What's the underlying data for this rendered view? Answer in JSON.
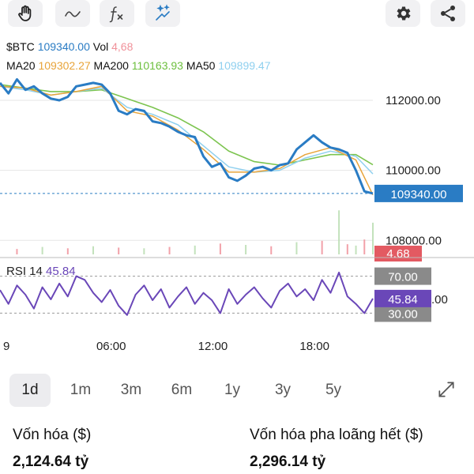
{
  "toolbar": {
    "left": [
      "hand-icon",
      "line-tool-icon",
      "fx-indicator-icon",
      "magic-drawing-icon"
    ],
    "right": [
      "settings-icon",
      "share-icon"
    ]
  },
  "legend": {
    "symbol": "$BTC",
    "price": "109340.00",
    "vol_label": "Vol",
    "vol_value": "4,68",
    "ma20_label": "MA20",
    "ma20_value": "109302.27",
    "ma200_label": "MA200",
    "ma200_value": "110163.93",
    "ma50_label": "MA50",
    "ma50_value": "109899.47"
  },
  "colors": {
    "price": "#2a7cc4",
    "vol": "#f0919a",
    "ma20": "#e8a43a",
    "ma200": "#7cc44f",
    "ma50": "#8fd0ef",
    "rsi": "#6a47b8",
    "grid": "#e6e6e6"
  },
  "chart_data": {
    "type": "line",
    "price_axis": {
      "ticks": [
        "112000.00",
        "110000.00",
        "108000.00"
      ],
      "ylim": [
        107600,
        112700
      ],
      "current_price_label": "109340.00",
      "volume_label": "4.68"
    },
    "x_ticks": [
      "9",
      "06:00",
      "12:00",
      "18:00"
    ],
    "series": [
      {
        "name": "$BTC",
        "x": [
          0,
          1,
          2,
          3,
          4,
          5,
          6,
          7,
          8,
          9,
          10,
          11,
          12,
          13,
          14,
          15,
          16,
          17,
          18,
          19,
          20,
          21,
          22,
          23,
          24,
          25,
          26,
          27,
          28,
          29,
          30,
          31,
          32,
          33,
          34,
          35,
          36,
          37,
          38,
          39,
          40,
          41,
          42,
          43,
          44
        ],
        "values": [
          112500,
          112200,
          112600,
          112300,
          112400,
          112200,
          112050,
          112000,
          112100,
          112400,
          112450,
          112500,
          112450,
          112200,
          111700,
          111600,
          111750,
          111700,
          111400,
          111350,
          111250,
          111100,
          111000,
          110950,
          110400,
          110100,
          110200,
          109800,
          109700,
          109850,
          110050,
          110100,
          110000,
          110150,
          110200,
          110600,
          110800,
          111000,
          110800,
          110650,
          110600,
          110500,
          110000,
          109400,
          109340
        ]
      },
      {
        "name": "MA20",
        "x": [
          0,
          3,
          6,
          9,
          12,
          15,
          18,
          21,
          24,
          27,
          30,
          33,
          36,
          39,
          42,
          44
        ],
        "values": [
          112400,
          112350,
          112150,
          112250,
          112400,
          111700,
          111550,
          111150,
          110600,
          109950,
          109950,
          110050,
          110450,
          110650,
          110300,
          109300
        ]
      },
      {
        "name": "MA50",
        "x": [
          0,
          3,
          6,
          9,
          12,
          15,
          18,
          21,
          24,
          27,
          30,
          33,
          36,
          39,
          42,
          44
        ],
        "values": [
          112400,
          112300,
          112150,
          112250,
          112350,
          111800,
          111600,
          111300,
          110700,
          110100,
          109950,
          110000,
          110350,
          110550,
          110400,
          109900
        ]
      },
      {
        "name": "MA200",
        "x": [
          0,
          3,
          6,
          9,
          12,
          15,
          18,
          21,
          24,
          27,
          30,
          33,
          36,
          39,
          42,
          44
        ],
        "values": [
          112450,
          112350,
          112250,
          112250,
          112300,
          112050,
          111800,
          111500,
          111100,
          110550,
          110250,
          110150,
          110300,
          110450,
          110450,
          110160
        ]
      }
    ],
    "volume": {
      "x": [
        2,
        5,
        8,
        11,
        14,
        17,
        20,
        23,
        26,
        29,
        32,
        35,
        38,
        40,
        41,
        42,
        43,
        44
      ],
      "values": [
        0.8,
        1.1,
        0.9,
        1.2,
        1.0,
        0.9,
        1.1,
        1.3,
        1.6,
        1.4,
        1.2,
        1.8,
        2.0,
        6.5,
        1.5,
        1.3,
        2.2,
        4.68
      ]
    },
    "rsi": {
      "name": "RSI 14",
      "value": "45.84",
      "levels": [
        "70.00",
        "30.00"
      ],
      "partial_tick": ".00",
      "ylim": [
        15,
        85
      ],
      "x": [
        0,
        1,
        2,
        3,
        4,
        5,
        6,
        7,
        8,
        9,
        10,
        11,
        12,
        13,
        14,
        15,
        16,
        17,
        18,
        19,
        20,
        21,
        22,
        23,
        24,
        25,
        26,
        27,
        28,
        29,
        30,
        31,
        32,
        33,
        34,
        35,
        36,
        37,
        38,
        39,
        40,
        41,
        42,
        43,
        44
      ],
      "values": [
        55,
        40,
        60,
        50,
        35,
        58,
        45,
        62,
        48,
        70,
        66,
        52,
        42,
        55,
        38,
        28,
        50,
        60,
        44,
        56,
        36,
        48,
        58,
        40,
        52,
        44,
        30,
        56,
        40,
        50,
        58,
        46,
        36,
        54,
        62,
        48,
        56,
        44,
        66,
        52,
        74,
        48,
        40,
        30,
        45.84
      ]
    },
    "ylabel": "",
    "xlabel": ""
  },
  "range_selector": {
    "options": [
      "1d",
      "1m",
      "3m",
      "6m",
      "1y",
      "3y",
      "5y"
    ],
    "selected": "1d"
  },
  "stats": {
    "market_cap_label": "Vốn hóa ($)",
    "market_cap_value": "2,124.64 tỷ",
    "fdv_label": "Vốn hóa pha loãng hết ($)",
    "fdv_value": "2,296.14 tỷ"
  }
}
